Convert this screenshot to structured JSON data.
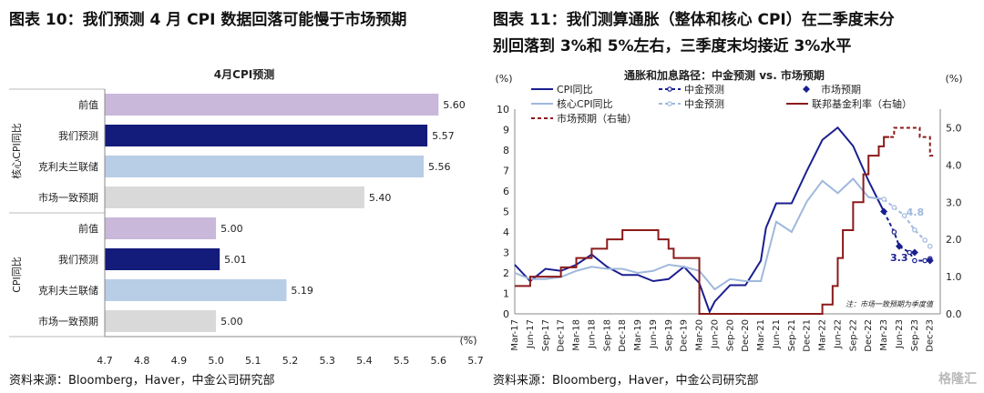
{
  "left": {
    "figure_title": "图表 10：我们预测 4 月 CPI 数据回落可能慢于市场预期",
    "source": "资料来源：Bloomberg，Haver，中金公司研究部"
  },
  "right": {
    "figure_title_line1": "图表 11：我们测算通胀（整体和核心 CPI）在二季度末分",
    "figure_title_line2": "别回落到 3%和 5%左右，三季度末均接近 3%水平",
    "source": "资料来源：Bloomberg，Haver，中金公司研究部"
  },
  "watermark": "格隆汇",
  "chart_data": [
    {
      "type": "bar",
      "orientation": "horizontal",
      "title": "4月CPI预测",
      "xunit": "(%)",
      "xlim": [
        4.7,
        5.7
      ],
      "xticks": [
        "4.7",
        "4.8",
        "4.9",
        "5.0",
        "5.1",
        "5.2",
        "5.3",
        "5.4",
        "5.5",
        "5.6",
        "5.7"
      ],
      "groups": [
        {
          "label": "核心CPI同比",
          "categories": [
            "前值",
            "我们预测",
            "克利夫兰联储",
            "市场一致预期"
          ],
          "values": [
            5.6,
            5.57,
            5.56,
            5.4
          ],
          "labels": [
            "5.60",
            "5.57",
            "5.56",
            "5.40"
          ]
        },
        {
          "label": "CPI同比",
          "categories": [
            "前值",
            "我们预测",
            "克利夫兰联储",
            "市场一致预期"
          ],
          "values": [
            5.0,
            5.01,
            5.19,
            5.0
          ],
          "labels": [
            "5.00",
            "5.01",
            "5.19",
            "5.00"
          ]
        }
      ],
      "colors": [
        "#c9b8da",
        "#131c7a",
        "#b8cde6",
        "#d9d9d9"
      ]
    },
    {
      "type": "line",
      "title": "通胀和加息路径：中金预测 vs. 市场预期",
      "left_unit": "(%)",
      "right_unit": "(%)",
      "ylim_left": [
        0,
        10
      ],
      "ylim_right": [
        0,
        5.5
      ],
      "yticks_left": [
        "0",
        "1",
        "2",
        "3",
        "4",
        "5",
        "6",
        "7",
        "8",
        "9",
        "10"
      ],
      "yticks_right": [
        "0.0",
        "1.0",
        "2.0",
        "3.0",
        "4.0",
        "5.0"
      ],
      "x_labels": [
        "Mar-17",
        "Jun-17",
        "Sep-17",
        "Dec-17",
        "Mar-18",
        "Jun-18",
        "Sep-18",
        "Dec-18",
        "Mar-19",
        "Jun-19",
        "Sep-19",
        "Dec-19",
        "Mar-20",
        "Jun-20",
        "Sep-20",
        "Dec-20",
        "Mar-21",
        "Jun-21",
        "Sep-21",
        "Dec-21",
        "Mar-22",
        "Jun-22",
        "Sep-22",
        "Dec-22",
        "Mar-23",
        "Jun-23",
        "Sep-23",
        "Dec-23"
      ],
      "note": "注：市场一致预期为季度值",
      "annotations": [
        {
          "text": "4.8",
          "x": "Jul-23",
          "y": 4.8
        },
        {
          "text": "3.3",
          "x": "Jun-23",
          "y": 3.3
        }
      ],
      "legend": [
        "CPI同比",
        "中金预测",
        "市场预期",
        "核心CPI同比",
        "中金预测",
        "联邦基金利率（右轴）",
        "市场预期（右轴）"
      ],
      "series": [
        {
          "name": "CPI同比",
          "color": "#1a1f8f",
          "axis": "left",
          "x": [
            "Mar-17",
            "Jun-17",
            "Sep-17",
            "Dec-17",
            "Mar-18",
            "Jun-18",
            "Sep-18",
            "Dec-18",
            "Mar-19",
            "Jun-19",
            "Sep-19",
            "Dec-19",
            "Mar-20",
            "May-20",
            "Jun-20",
            "Sep-20",
            "Dec-20",
            "Mar-21",
            "Apr-21",
            "Jun-21",
            "Sep-21",
            "Dec-21",
            "Mar-22",
            "Jun-22",
            "Sep-22",
            "Dec-22",
            "Mar-23"
          ],
          "y": [
            2.4,
            1.6,
            2.2,
            2.1,
            2.4,
            2.9,
            2.3,
            1.9,
            1.9,
            1.6,
            1.7,
            2.3,
            1.5,
            0.1,
            0.6,
            1.4,
            1.4,
            2.6,
            4.2,
            5.4,
            5.4,
            7.0,
            8.5,
            9.1,
            8.2,
            6.5,
            5.0
          ]
        },
        {
          "name": "中金预测",
          "color": "#1a1f8f",
          "axis": "left",
          "dashed": true,
          "x": [
            "Mar-23",
            "May-23",
            "Jun-23",
            "Aug-23",
            "Sep-23",
            "Nov-23",
            "Dec-23"
          ],
          "y": [
            5.0,
            4.0,
            3.3,
            3.0,
            2.6,
            2.6,
            2.7
          ]
        },
        {
          "name": "市场预期",
          "color": "#1a1f8f",
          "axis": "left",
          "markers": "diamond",
          "x": [
            "Mar-23",
            "Jun-23",
            "Sep-23",
            "Dec-23"
          ],
          "y": [
            5.0,
            3.3,
            3.0,
            2.6
          ]
        },
        {
          "name": "核心CPI同比",
          "color": "#9fb8dc",
          "axis": "left",
          "x": [
            "Mar-17",
            "Jun-17",
            "Sep-17",
            "Dec-17",
            "Mar-18",
            "Jun-18",
            "Sep-18",
            "Dec-18",
            "Mar-19",
            "Jun-19",
            "Sep-19",
            "Dec-19",
            "Mar-20",
            "Jun-20",
            "Sep-20",
            "Dec-20",
            "Mar-21",
            "Jun-21",
            "Sep-21",
            "Dec-21",
            "Mar-22",
            "Jun-22",
            "Sep-22",
            "Dec-22",
            "Mar-23"
          ],
          "y": [
            2.0,
            1.7,
            1.7,
            1.8,
            2.1,
            2.3,
            2.2,
            2.2,
            2.0,
            2.1,
            2.4,
            2.3,
            2.1,
            1.2,
            1.7,
            1.6,
            1.6,
            4.5,
            4.0,
            5.5,
            6.5,
            5.9,
            6.6,
            5.7,
            5.6
          ]
        },
        {
          "name": "中金预测",
          "color": "#9fb8dc",
          "axis": "left",
          "dashed": true,
          "x": [
            "Mar-23",
            "May-23",
            "Jul-23",
            "Sep-23",
            "Nov-23",
            "Dec-23"
          ],
          "y": [
            5.6,
            5.2,
            4.8,
            4.1,
            3.6,
            3.3
          ]
        },
        {
          "name": "联邦基金利率（右轴）",
          "color": "#8b1a1a",
          "axis": "right",
          "step": true,
          "x": [
            "Mar-17",
            "Jun-17",
            "Dec-17",
            "Mar-18",
            "Jun-18",
            "Sep-18",
            "Dec-18",
            "Jul-19",
            "Sep-19",
            "Oct-19",
            "Mar-20",
            "Mar-22",
            "May-22",
            "Jun-22",
            "Jul-22",
            "Sep-22",
            "Nov-22",
            "Dec-22",
            "Feb-23",
            "Mar-23"
          ],
          "y": [
            0.75,
            1.0,
            1.25,
            1.5,
            1.75,
            2.0,
            2.25,
            2.0,
            1.75,
            1.5,
            0.0,
            0.25,
            0.75,
            1.5,
            2.25,
            3.0,
            3.75,
            4.25,
            4.5,
            4.75
          ]
        },
        {
          "name": "市场预期（右轴）",
          "color": "#8b1a1a",
          "axis": "right",
          "dashed": true,
          "step": true,
          "x": [
            "Mar-23",
            "May-23",
            "Jul-23",
            "Sep-23",
            "Oct-23",
            "Dec-23"
          ],
          "y": [
            4.75,
            5.0,
            5.0,
            5.0,
            4.75,
            4.25
          ]
        }
      ]
    }
  ]
}
